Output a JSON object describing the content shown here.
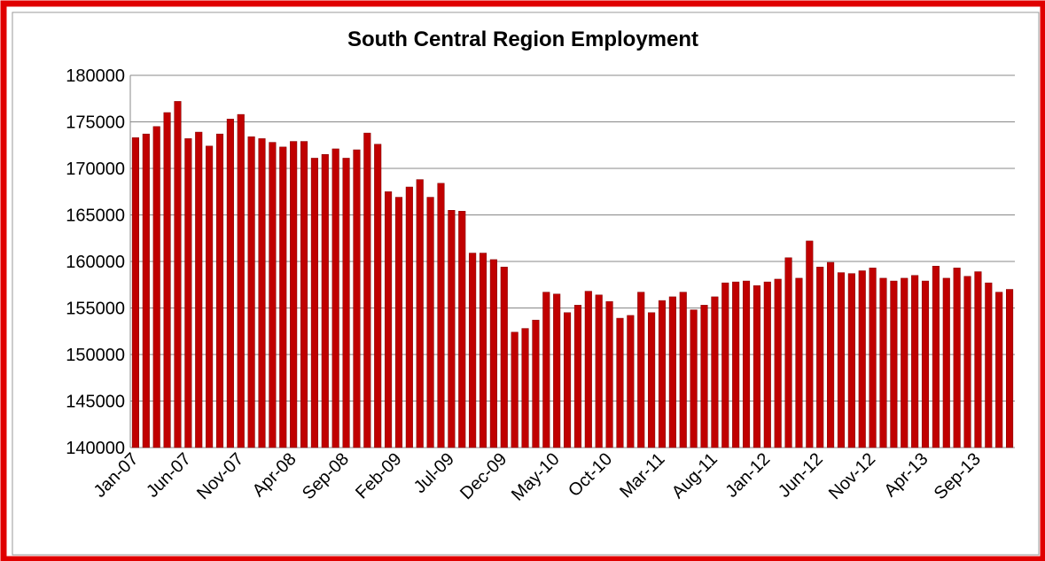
{
  "chart_data": {
    "type": "bar",
    "title": "South Central Region Employment",
    "categories": [
      "Jan-07",
      null,
      null,
      null,
      null,
      "Jun-07",
      null,
      null,
      null,
      null,
      "Nov-07",
      null,
      null,
      null,
      null,
      "Apr-08",
      null,
      null,
      null,
      null,
      "Sep-08",
      null,
      null,
      null,
      null,
      "Feb-09",
      null,
      null,
      null,
      null,
      "Jul-09",
      null,
      null,
      null,
      null,
      "Dec-09",
      null,
      null,
      null,
      null,
      "May-10",
      null,
      null,
      null,
      null,
      "Oct-10",
      null,
      null,
      null,
      null,
      "Mar-11",
      null,
      null,
      null,
      null,
      "Aug-11",
      null,
      null,
      null,
      null,
      "Jan-12",
      null,
      null,
      null,
      null,
      "Jun-12",
      null,
      null,
      null,
      null,
      "Nov-12",
      null,
      null,
      null,
      null,
      "Apr-13",
      null,
      null,
      null,
      null,
      "Sep-13",
      null,
      null,
      null
    ],
    "values": [
      173300,
      173700,
      174500,
      176000,
      177200,
      173200,
      173900,
      172400,
      173700,
      175300,
      175800,
      173400,
      173200,
      172800,
      172300,
      172900,
      172900,
      171100,
      171500,
      172100,
      171100,
      172000,
      173800,
      172600,
      167500,
      166900,
      168000,
      168800,
      166900,
      168400,
      165500,
      165400,
      160900,
      160900,
      160200,
      159400,
      152400,
      152800,
      153700,
      156700,
      156500,
      154500,
      155300,
      156800,
      156400,
      155700,
      153900,
      154200,
      156700,
      154500,
      155800,
      156200,
      156700,
      154800,
      155300,
      156200,
      157700,
      157800,
      157900,
      157400,
      157800,
      158100,
      160400,
      158200,
      162200,
      159400,
      159900,
      158800,
      158700,
      159000,
      159300,
      158200,
      157900,
      158200,
      158500,
      157900,
      159500,
      158200,
      159300,
      158400,
      158900,
      157700,
      156700,
      157000
    ],
    "color": "#c00000",
    "ylim": [
      140000,
      180000
    ],
    "yticks": [
      140000,
      145000,
      150000,
      155000,
      160000,
      165000,
      170000,
      175000,
      180000
    ],
    "grid": true
  }
}
